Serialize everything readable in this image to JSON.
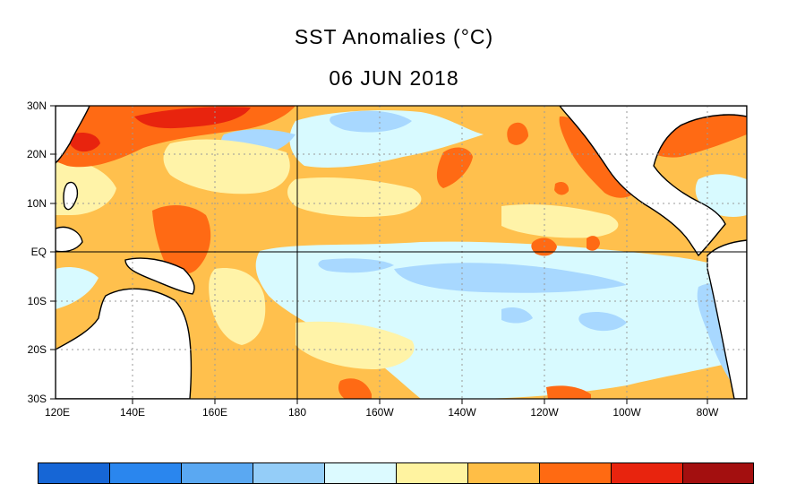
{
  "title": "SST Anomalies (°C)",
  "date": "06 JUN 2018",
  "lat_ticks": [
    "30N",
    "20N",
    "10N",
    "EQ",
    "10S",
    "20S",
    "30S"
  ],
  "lon_ticks": [
    "120E",
    "140E",
    "160E",
    "180",
    "160W",
    "140W",
    "120W",
    "100W",
    "80W"
  ],
  "colors": {
    "land": "#ffffff",
    "coast": "#000000",
    "grid": "#9a9a9a",
    "anom_pos_1": "#fff3a8",
    "anom_pos_2": "#ffc04d",
    "anom_pos_3": "#ff6a14",
    "anom_pos_4": "#e8240e",
    "anom_neg_1": "#d8faff",
    "anom_neg_2": "#a8d8ff"
  },
  "colorbar": [
    "#1666d6",
    "#2a86ee",
    "#5aa8f2",
    "#94cdf8",
    "#dcfaff",
    "#fff3a0",
    "#ffbe46",
    "#ff6a12",
    "#e8240e",
    "#a30f0f"
  ]
}
